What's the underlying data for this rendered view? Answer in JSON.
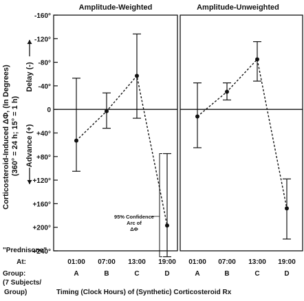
{
  "chart_data": [
    {
      "type": "scatter",
      "title": "Amplitude-Weighted",
      "ylabel": "Corticosteroid-Induced ΔΦ, (In Degrees) (360° = 24 h; 15° = 1 h)",
      "ylim": [
        -160,
        240
      ],
      "y_inverted": true,
      "y_ticks": [
        "-160°",
        "-120°",
        "-80°",
        "-40°",
        "0",
        "+40°",
        "+80°",
        "+120°",
        "+160°",
        "+200°",
        "+240°"
      ],
      "y_direction_labels": {
        "delay": "Delay (-)",
        "advance": "Advance (+)"
      },
      "categories": [
        "01:00",
        "07:00",
        "13:00",
        "19:00"
      ],
      "groups": [
        "A",
        "B",
        "C",
        "D"
      ],
      "series": [
        {
          "values": [
            53,
            3,
            -57,
            197
          ],
          "err_low": [
            -53,
            -28,
            -128,
            75
          ],
          "err_high": [
            105,
            32,
            15,
            250
          ]
        }
      ],
      "reference_line": 0,
      "annotation": {
        "lines": [
          "95% Confidence",
          "Arc of",
          "ΔΦ"
        ],
        "category": "D"
      }
    },
    {
      "type": "scatter",
      "title": "Amplitude-Unweighted",
      "ylim": [
        -160,
        240
      ],
      "y_inverted": true,
      "categories": [
        "01:00",
        "07:00",
        "13:00",
        "19:00"
      ],
      "groups": [
        "A",
        "B",
        "C",
        "D"
      ],
      "series": [
        {
          "values": [
            12,
            -30,
            -85,
            168
          ],
          "err_low": [
            -45,
            -45,
            -115,
            118
          ],
          "err_high": [
            65,
            -16,
            -48,
            220
          ]
        }
      ],
      "reference_line": 0
    }
  ],
  "labels": {
    "prednisone": "\"Prednisone\"",
    "at": "At:",
    "group": "Group:",
    "subjects": "(7 Subjects/",
    "group_paren": "Group)",
    "xlabel": "Timing (Clock Hours) of (Synthetic) Corticosteroid Rx"
  }
}
